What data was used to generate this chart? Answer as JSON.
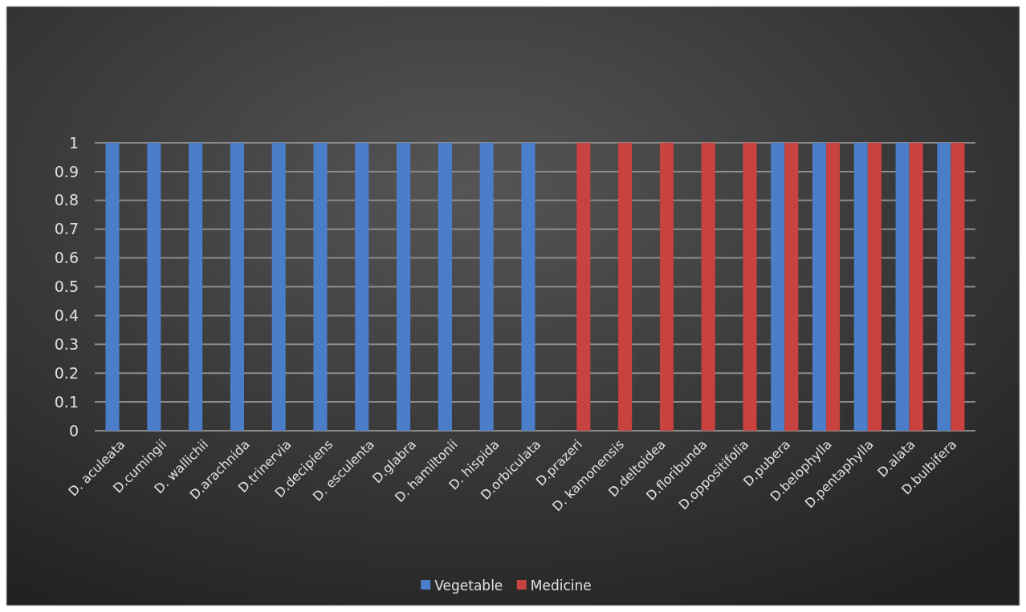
{
  "chart_data": {
    "type": "bar",
    "categories": [
      "D. aculeata",
      "D.cumingii",
      "D. wallichii",
      "D.arachnida",
      "D.trinervia",
      "D.decipiens",
      "D. esculenta",
      "D.glabra",
      "D. hamiltonii",
      "D. hispida",
      "D.orbiculata",
      "D.prazeri",
      "D. kamonensis",
      "D.deltoidea",
      "D.floribunda",
      "D.oppositifolia",
      "D.pubera",
      "D.belophylla",
      "D.pentaphylla",
      "D.alata",
      "D.bulbifera"
    ],
    "series": [
      {
        "name": "Vegetable",
        "color": "#4a7ec8",
        "values": [
          1,
          1,
          1,
          1,
          1,
          1,
          1,
          1,
          1,
          1,
          1,
          0,
          0,
          0,
          0,
          0,
          1,
          1,
          1,
          1,
          1
        ]
      },
      {
        "name": "Medicine",
        "color": "#c8423f",
        "values": [
          0,
          0,
          0,
          0,
          0,
          0,
          0,
          0,
          0,
          0,
          0,
          1,
          1,
          1,
          1,
          1,
          1,
          1,
          1,
          1,
          1
        ]
      }
    ],
    "ylim": [
      0,
      1
    ],
    "yticks": [
      0,
      {
        "value": 0.1,
        "label": "0.1"
      },
      {
        "value": 0.2,
        "label": "0.2"
      },
      {
        "value": 0.3,
        "label": "0.3"
      },
      {
        "value": 0.4,
        "label": "0.4"
      },
      {
        "value": 0.5,
        "label": "0.5"
      },
      {
        "value": 0.6,
        "label": "0.6"
      },
      {
        "value": 0.7,
        "label": "0.7"
      },
      {
        "value": 0.8,
        "label": "0.8"
      },
      {
        "value": 0.9,
        "label": "0.9"
      },
      1
    ],
    "grid": "y",
    "legend": "bottom"
  }
}
